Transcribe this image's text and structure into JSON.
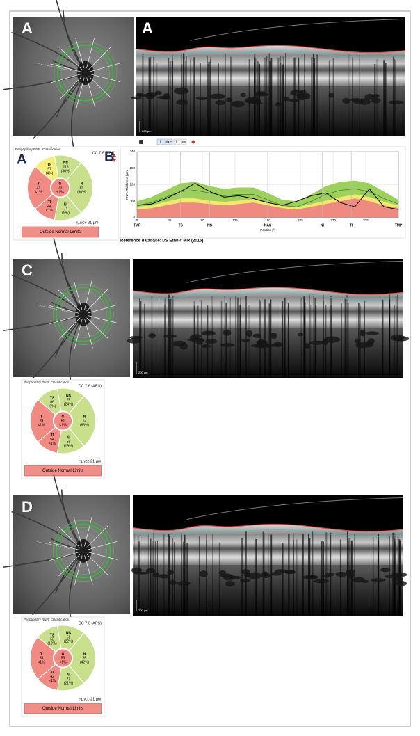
{
  "panels": [
    {
      "label": "A",
      "oct_label": "A",
      "scale": "200 µm",
      "toolbar": [
        "1:1 pixel",
        "1:1 µm"
      ],
      "classification": {
        "label": "A",
        "title": "Peripapillary RNFL Classification",
        "model": "CC 7.6 (APS)",
        "sectors": [
          {
            "name": "TS",
            "thickness": 97,
            "percentile": "(4%)",
            "color": "#f6ef7c"
          },
          {
            "name": "NS",
            "thickness": 116,
            "percentile": "(86%)",
            "color": "#c8e08c"
          },
          {
            "name": "N",
            "thickness": 81,
            "percentile": "(96%)",
            "color": "#c8e08c"
          },
          {
            "name": "NI",
            "thickness": 74,
            "percentile": "(9%)",
            "color": "#c8e08c"
          },
          {
            "name": "TI",
            "thickness": 44,
            "percentile": "<1%",
            "color": "#f08a82"
          },
          {
            "name": "T",
            "thickness": 41,
            "percentile": "<1%",
            "color": "#f08a82"
          }
        ],
        "global": {
          "name": "G",
          "thickness": 70,
          "percentile": "<1%",
          "color": "#f08a82"
        },
        "vcc": "△µvcc 21 µm",
        "result": "Outside Normal Limits"
      }
    },
    {
      "label": "C",
      "scale": "200 µm",
      "classification": {
        "title": "Peripapillary RNFL Classification",
        "model": "CC 7.6 (APS)",
        "sectors": [
          {
            "name": "TS",
            "thickness": 86,
            "percentile": "(6%)",
            "color": "#c8e08c"
          },
          {
            "name": "NS",
            "thickness": 75,
            "percentile": "(24%)",
            "color": "#c8e08c"
          },
          {
            "name": "N",
            "thickness": 67,
            "percentile": "(63%)",
            "color": "#c8e08c"
          },
          {
            "name": "NI",
            "thickness": 58,
            "percentile": "(19%)",
            "color": "#c8e08c"
          },
          {
            "name": "TI",
            "thickness": 54,
            "percentile": "<1%",
            "color": "#f08a82"
          },
          {
            "name": "T",
            "thickness": 39,
            "percentile": "<1%",
            "color": "#f08a82"
          }
        ],
        "global": {
          "name": "G",
          "thickness": 61,
          "percentile": "<1%",
          "color": "#f08a82"
        },
        "vcc": "△µvcc 21 µm",
        "result": "Outside Normal Limits"
      }
    },
    {
      "label": "D",
      "scale": "200 µm",
      "classification": {
        "title": "Peripapillary RNFL Classification",
        "model": "CC 7.6 (APS)",
        "sectors": [
          {
            "name": "TS",
            "thickness": 52,
            "percentile": "(10%)",
            "color": "#c8e08c"
          },
          {
            "name": "NS",
            "thickness": 51,
            "percentile": "(22%)",
            "color": "#c8e08c"
          },
          {
            "name": "N",
            "thickness": 55,
            "percentile": "(42%)",
            "color": "#c8e08c"
          },
          {
            "name": "NI",
            "thickness": 27,
            "percentile": "(21%)",
            "color": "#c8e08c"
          },
          {
            "name": "TI",
            "thickness": 42,
            "percentile": "<1%",
            "color": "#f08a82"
          },
          {
            "name": "T",
            "thickness": 35,
            "percentile": "<1%",
            "color": "#f08a82"
          }
        ],
        "global": {
          "name": "G",
          "thickness": 53,
          "percentile": "<1%",
          "color": "#f08a82"
        },
        "vcc": "△µvcc 21 µm",
        "result": "Outside Normal Limits"
      }
    }
  ],
  "chart_data": {
    "type": "line",
    "label": "B",
    "xlabel": "Position [°]",
    "ylabel": "RNFL Thickness [µm]",
    "caption": "Reference database: US Ethnic Mix (2016)",
    "x": [
      0,
      20,
      40,
      60,
      80,
      100,
      120,
      140,
      160,
      180,
      200,
      220,
      240,
      260,
      280,
      300,
      320,
      340,
      360
    ],
    "series": [
      {
        "style": "area",
        "color": "#9ccf5e",
        "values": [
          60,
          75,
          100,
          125,
          130,
          115,
          105,
          110,
          110,
          90,
          65,
          60,
          85,
          115,
          130,
          135,
          125,
          95,
          65
        ]
      },
      {
        "style": "area",
        "color": "#f2ea6e",
        "values": [
          40,
          45,
          58,
          70,
          70,
          62,
          58,
          62,
          68,
          55,
          42,
          38,
          50,
          62,
          75,
          85,
          75,
          58,
          45
        ]
      },
      {
        "style": "area",
        "color": "#ee8a80",
        "values": [
          30,
          35,
          45,
          55,
          55,
          50,
          45,
          50,
          55,
          45,
          35,
          30,
          40,
          50,
          60,
          70,
          60,
          45,
          35
        ]
      },
      {
        "style": "line",
        "color": "#3d7a2a",
        "values": [
          45,
          55,
          75,
          95,
          100,
          90,
          80,
          85,
          85,
          65,
          45,
          40,
          60,
          85,
          100,
          105,
          95,
          70,
          50
        ]
      },
      {
        "style": "line",
        "color": "#111111",
        "values": [
          45,
          50,
          70,
          95,
          125,
          95,
          75,
          80,
          70,
          55,
          45,
          60,
          80,
          90,
          55,
          40,
          105,
          40,
          30
        ]
      }
    ],
    "xlim": [
      0,
      360
    ],
    "ylim": [
      0,
      240
    ],
    "xticks": [
      0,
      45,
      90,
      135,
      180,
      225,
      270,
      315
    ],
    "yticks": [
      0,
      60,
      120,
      180,
      240
    ],
    "sector_ticks": [
      {
        "value": 0,
        "label": "TMP"
      },
      {
        "value": 60,
        "label": "TS"
      },
      {
        "value": 100,
        "label": "NS"
      },
      {
        "value": 180,
        "label": "NAS"
      },
      {
        "value": 255,
        "label": "NI"
      },
      {
        "value": 295,
        "label": "TI"
      },
      {
        "value": 360,
        "label": "TMP"
      }
    ],
    "grid": true
  }
}
